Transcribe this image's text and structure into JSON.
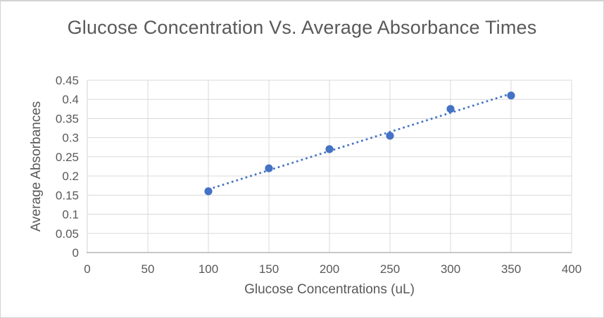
{
  "window": {
    "background": "#ffffff",
    "border_color": "#d2d2d2"
  },
  "chart_data": {
    "type": "scatter",
    "title": "Glucose Concentration Vs. Average Absorbance Times",
    "xlabel": "Glucose Concentrations (uL)",
    "ylabel": "Average Absorbances",
    "points": {
      "x": [
        100,
        150,
        200,
        250,
        300,
        350
      ],
      "y": [
        0.16,
        0.22,
        0.27,
        0.305,
        0.375,
        0.41
      ]
    },
    "trendline": {
      "type": "linear",
      "style": "dotted",
      "start": {
        "x": 100,
        "y": 0.165
      },
      "end": {
        "x": 350,
        "y": 0.415
      }
    },
    "xlim": [
      0,
      400
    ],
    "ylim": [
      0,
      0.45
    ],
    "xticks": [
      0,
      50,
      100,
      150,
      200,
      250,
      300,
      350,
      400
    ],
    "xtick_labels": [
      "0",
      "50",
      "100",
      "150",
      "200",
      "250",
      "300",
      "350",
      "400"
    ],
    "ytick_values": [
      0,
      0.05,
      0.1,
      0.15,
      0.2,
      0.25,
      0.3,
      0.35,
      0.4,
      0.45
    ],
    "ytick_labels": [
      "0",
      "0.05",
      "0.1",
      "0.15",
      "0.2",
      "0.25",
      "0.3",
      "0.35",
      "0.4",
      "0.45"
    ],
    "grid": true,
    "legend": false,
    "colors": {
      "series": "#4472C4",
      "gridline": "#D9D9D9",
      "axis_line": "#BFBFBF",
      "text": "#595959"
    }
  }
}
